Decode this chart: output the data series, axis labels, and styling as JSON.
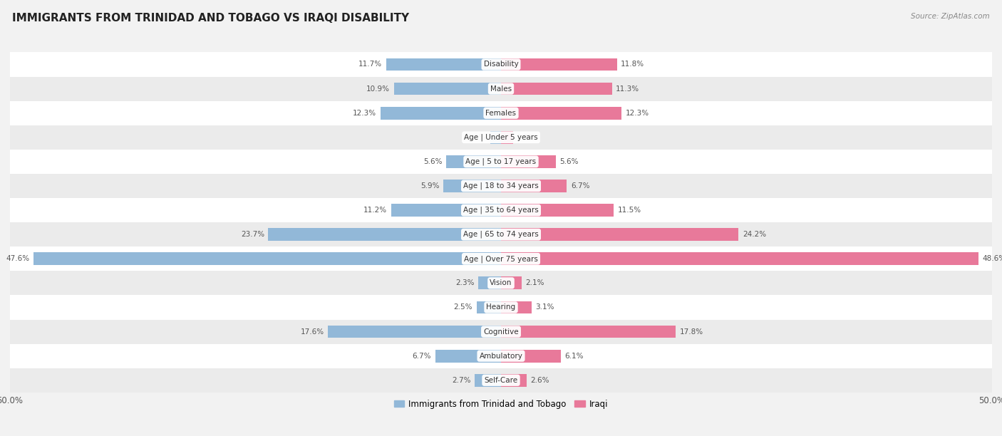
{
  "title": "IMMIGRANTS FROM TRINIDAD AND TOBAGO VS IRAQI DISABILITY",
  "source": "Source: ZipAtlas.com",
  "categories": [
    "Disability",
    "Males",
    "Females",
    "Age | Under 5 years",
    "Age | 5 to 17 years",
    "Age | 18 to 34 years",
    "Age | 35 to 64 years",
    "Age | 65 to 74 years",
    "Age | Over 75 years",
    "Vision",
    "Hearing",
    "Cognitive",
    "Ambulatory",
    "Self-Care"
  ],
  "left_values": [
    11.7,
    10.9,
    12.3,
    1.1,
    5.6,
    5.9,
    11.2,
    23.7,
    47.6,
    2.3,
    2.5,
    17.6,
    6.7,
    2.7
  ],
  "right_values": [
    11.8,
    11.3,
    12.3,
    1.2,
    5.6,
    6.7,
    11.5,
    24.2,
    48.6,
    2.1,
    3.1,
    17.8,
    6.1,
    2.6
  ],
  "left_color": "#92b8d8",
  "right_color": "#e8799a",
  "left_label": "Immigrants from Trinidad and Tobago",
  "right_label": "Iraqi",
  "max_value": 50.0,
  "background_color": "#f2f2f2",
  "row_colors": [
    "#ffffff",
    "#ebebeb"
  ],
  "title_fontsize": 11,
  "label_fontsize": 7.5,
  "value_fontsize": 7.5,
  "bar_height": 0.52,
  "pill_color": "#ffffff",
  "pill_text_color": "#333333",
  "value_text_color": "#555555"
}
